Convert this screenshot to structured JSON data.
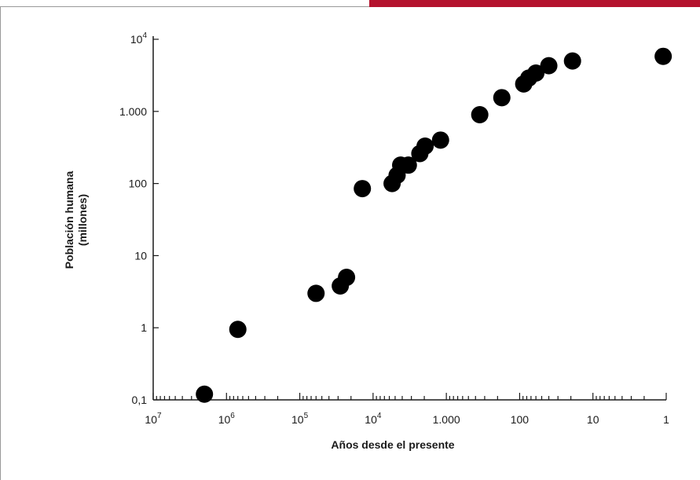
{
  "colors": {
    "band": "#b4122d",
    "frame": "#999999",
    "axis": "#1a1a1a",
    "point": "#000000"
  },
  "chart_data": {
    "type": "scatter",
    "title": "",
    "xlabel": "Años desde el presente",
    "ylabel_lines": [
      "Población humana",
      "(millones)"
    ],
    "x_scale": "log",
    "x_reversed": true,
    "y_scale": "log",
    "xlim": [
      10000000,
      1
    ],
    "ylim": [
      0.1,
      10000
    ],
    "grid": false,
    "x_ticks": [
      {
        "value": 10000000,
        "base": "10",
        "exp": "7"
      },
      {
        "value": 1000000,
        "base": "10",
        "exp": "6"
      },
      {
        "value": 100000,
        "base": "10",
        "exp": "5"
      },
      {
        "value": 10000,
        "base": "10",
        "exp": "4"
      },
      {
        "value": 1000,
        "base": "1.000",
        "exp": ""
      },
      {
        "value": 100,
        "base": "100",
        "exp": ""
      },
      {
        "value": 10,
        "base": "10",
        "exp": ""
      },
      {
        "value": 1,
        "base": "1",
        "exp": ""
      }
    ],
    "y_ticks": [
      {
        "value": 10000,
        "base": "10",
        "exp": "4"
      },
      {
        "value": 1000,
        "base": "1.000",
        "exp": ""
      },
      {
        "value": 100,
        "base": "100",
        "exp": ""
      },
      {
        "value": 10,
        "base": "10",
        "exp": ""
      },
      {
        "value": 1,
        "base": "1",
        "exp": ""
      },
      {
        "value": 0.1,
        "base": "0,1",
        "exp": ""
      }
    ],
    "points": [
      {
        "x": 2000000,
        "y": 0.12
      },
      {
        "x": 700000,
        "y": 0.95
      },
      {
        "x": 60000,
        "y": 3.0
      },
      {
        "x": 28000,
        "y": 3.8
      },
      {
        "x": 23000,
        "y": 5.0
      },
      {
        "x": 14000,
        "y": 85
      },
      {
        "x": 5500,
        "y": 100
      },
      {
        "x": 4700,
        "y": 130
      },
      {
        "x": 4200,
        "y": 180
      },
      {
        "x": 3300,
        "y": 180
      },
      {
        "x": 2300,
        "y": 260
      },
      {
        "x": 1950,
        "y": 330
      },
      {
        "x": 1200,
        "y": 400
      },
      {
        "x": 350,
        "y": 900
      },
      {
        "x": 175,
        "y": 1550
      },
      {
        "x": 88,
        "y": 2400
      },
      {
        "x": 75,
        "y": 2900
      },
      {
        "x": 60,
        "y": 3400
      },
      {
        "x": 40,
        "y": 4300
      },
      {
        "x": 19,
        "y": 5000
      },
      {
        "x": 1.1,
        "y": 5800
      }
    ]
  }
}
